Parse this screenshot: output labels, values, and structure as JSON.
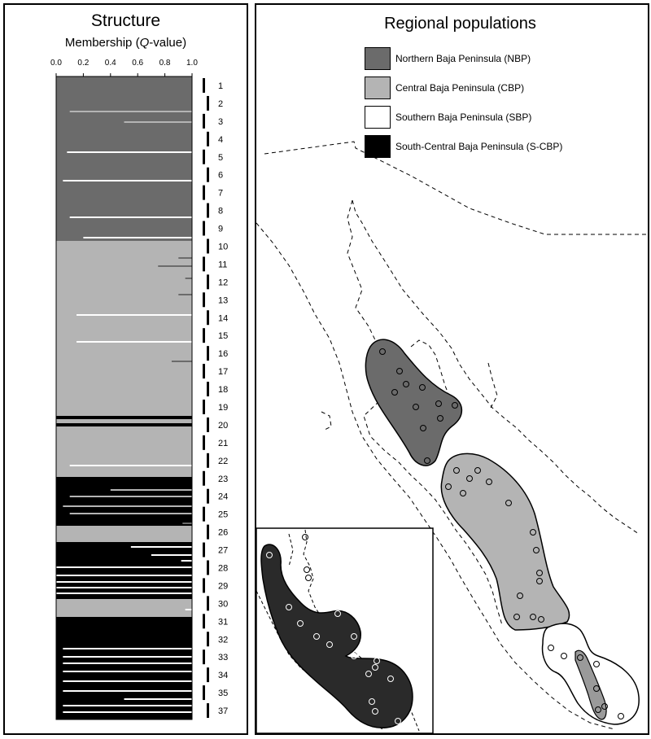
{
  "structure_panel": {
    "title": "Structure",
    "axis_label_prefix": "Membership (",
    "axis_label_italic": "Q",
    "axis_label_suffix": "-value)",
    "ticks": [
      "0.0",
      "0.2",
      "0.4",
      "0.6",
      "0.8",
      "1.0"
    ],
    "population_numbers": [
      "1",
      "2",
      "3",
      "4",
      "5",
      "6",
      "7",
      "8",
      "9",
      "10",
      "11",
      "12",
      "13",
      "14",
      "15",
      "16",
      "17",
      "18",
      "19",
      "20",
      "21",
      "22",
      "23",
      "24",
      "25",
      "26",
      "27",
      "28",
      "29",
      "30",
      "31",
      "32",
      "33",
      "34",
      "35",
      "37"
    ],
    "colors": {
      "NBP": "#6b6b6b",
      "CBP": "#b4b4b4",
      "SBP": "#ffffff",
      "S-CBP": "#000000"
    }
  },
  "map_panel": {
    "title": "Regional populations",
    "legend": [
      {
        "label": "Northern Baja Peninsula (NBP)",
        "color": "#6b6b6b"
      },
      {
        "label": "Central Baja Peninsula (CBP)",
        "color": "#b4b4b4"
      },
      {
        "label": "Southern Baja Peninsula (SBP)",
        "color": "#ffffff"
      },
      {
        "label": "South-Central Baja Peninsula (S-CBP)",
        "color": "#000000"
      }
    ]
  }
}
